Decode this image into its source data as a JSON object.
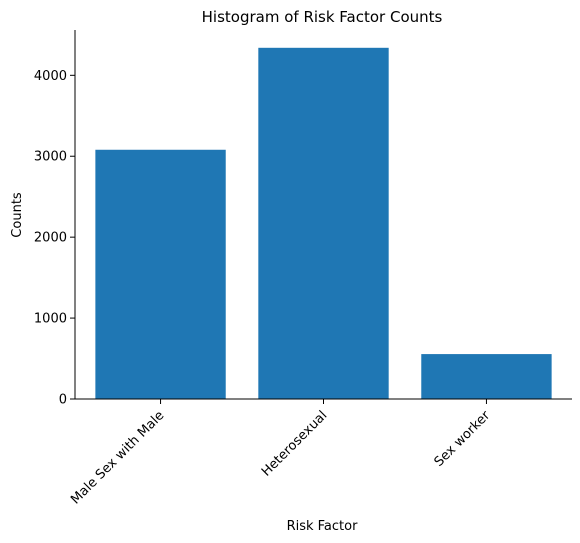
{
  "chart_data": {
    "type": "bar",
    "title": "Histogram of Risk Factor Counts",
    "xlabel": "Risk Factor",
    "ylabel": "Counts",
    "categories": [
      "Male Sex with Male",
      "Heterosexual",
      "Sex worker"
    ],
    "values": [
      3080,
      4340,
      555
    ],
    "ylim": [
      0,
      4560
    ],
    "yticks": [
      0,
      1000,
      2000,
      3000,
      4000
    ],
    "grid": false,
    "bar_color": "#1f77b4",
    "spines": [
      "left",
      "bottom"
    ]
  }
}
